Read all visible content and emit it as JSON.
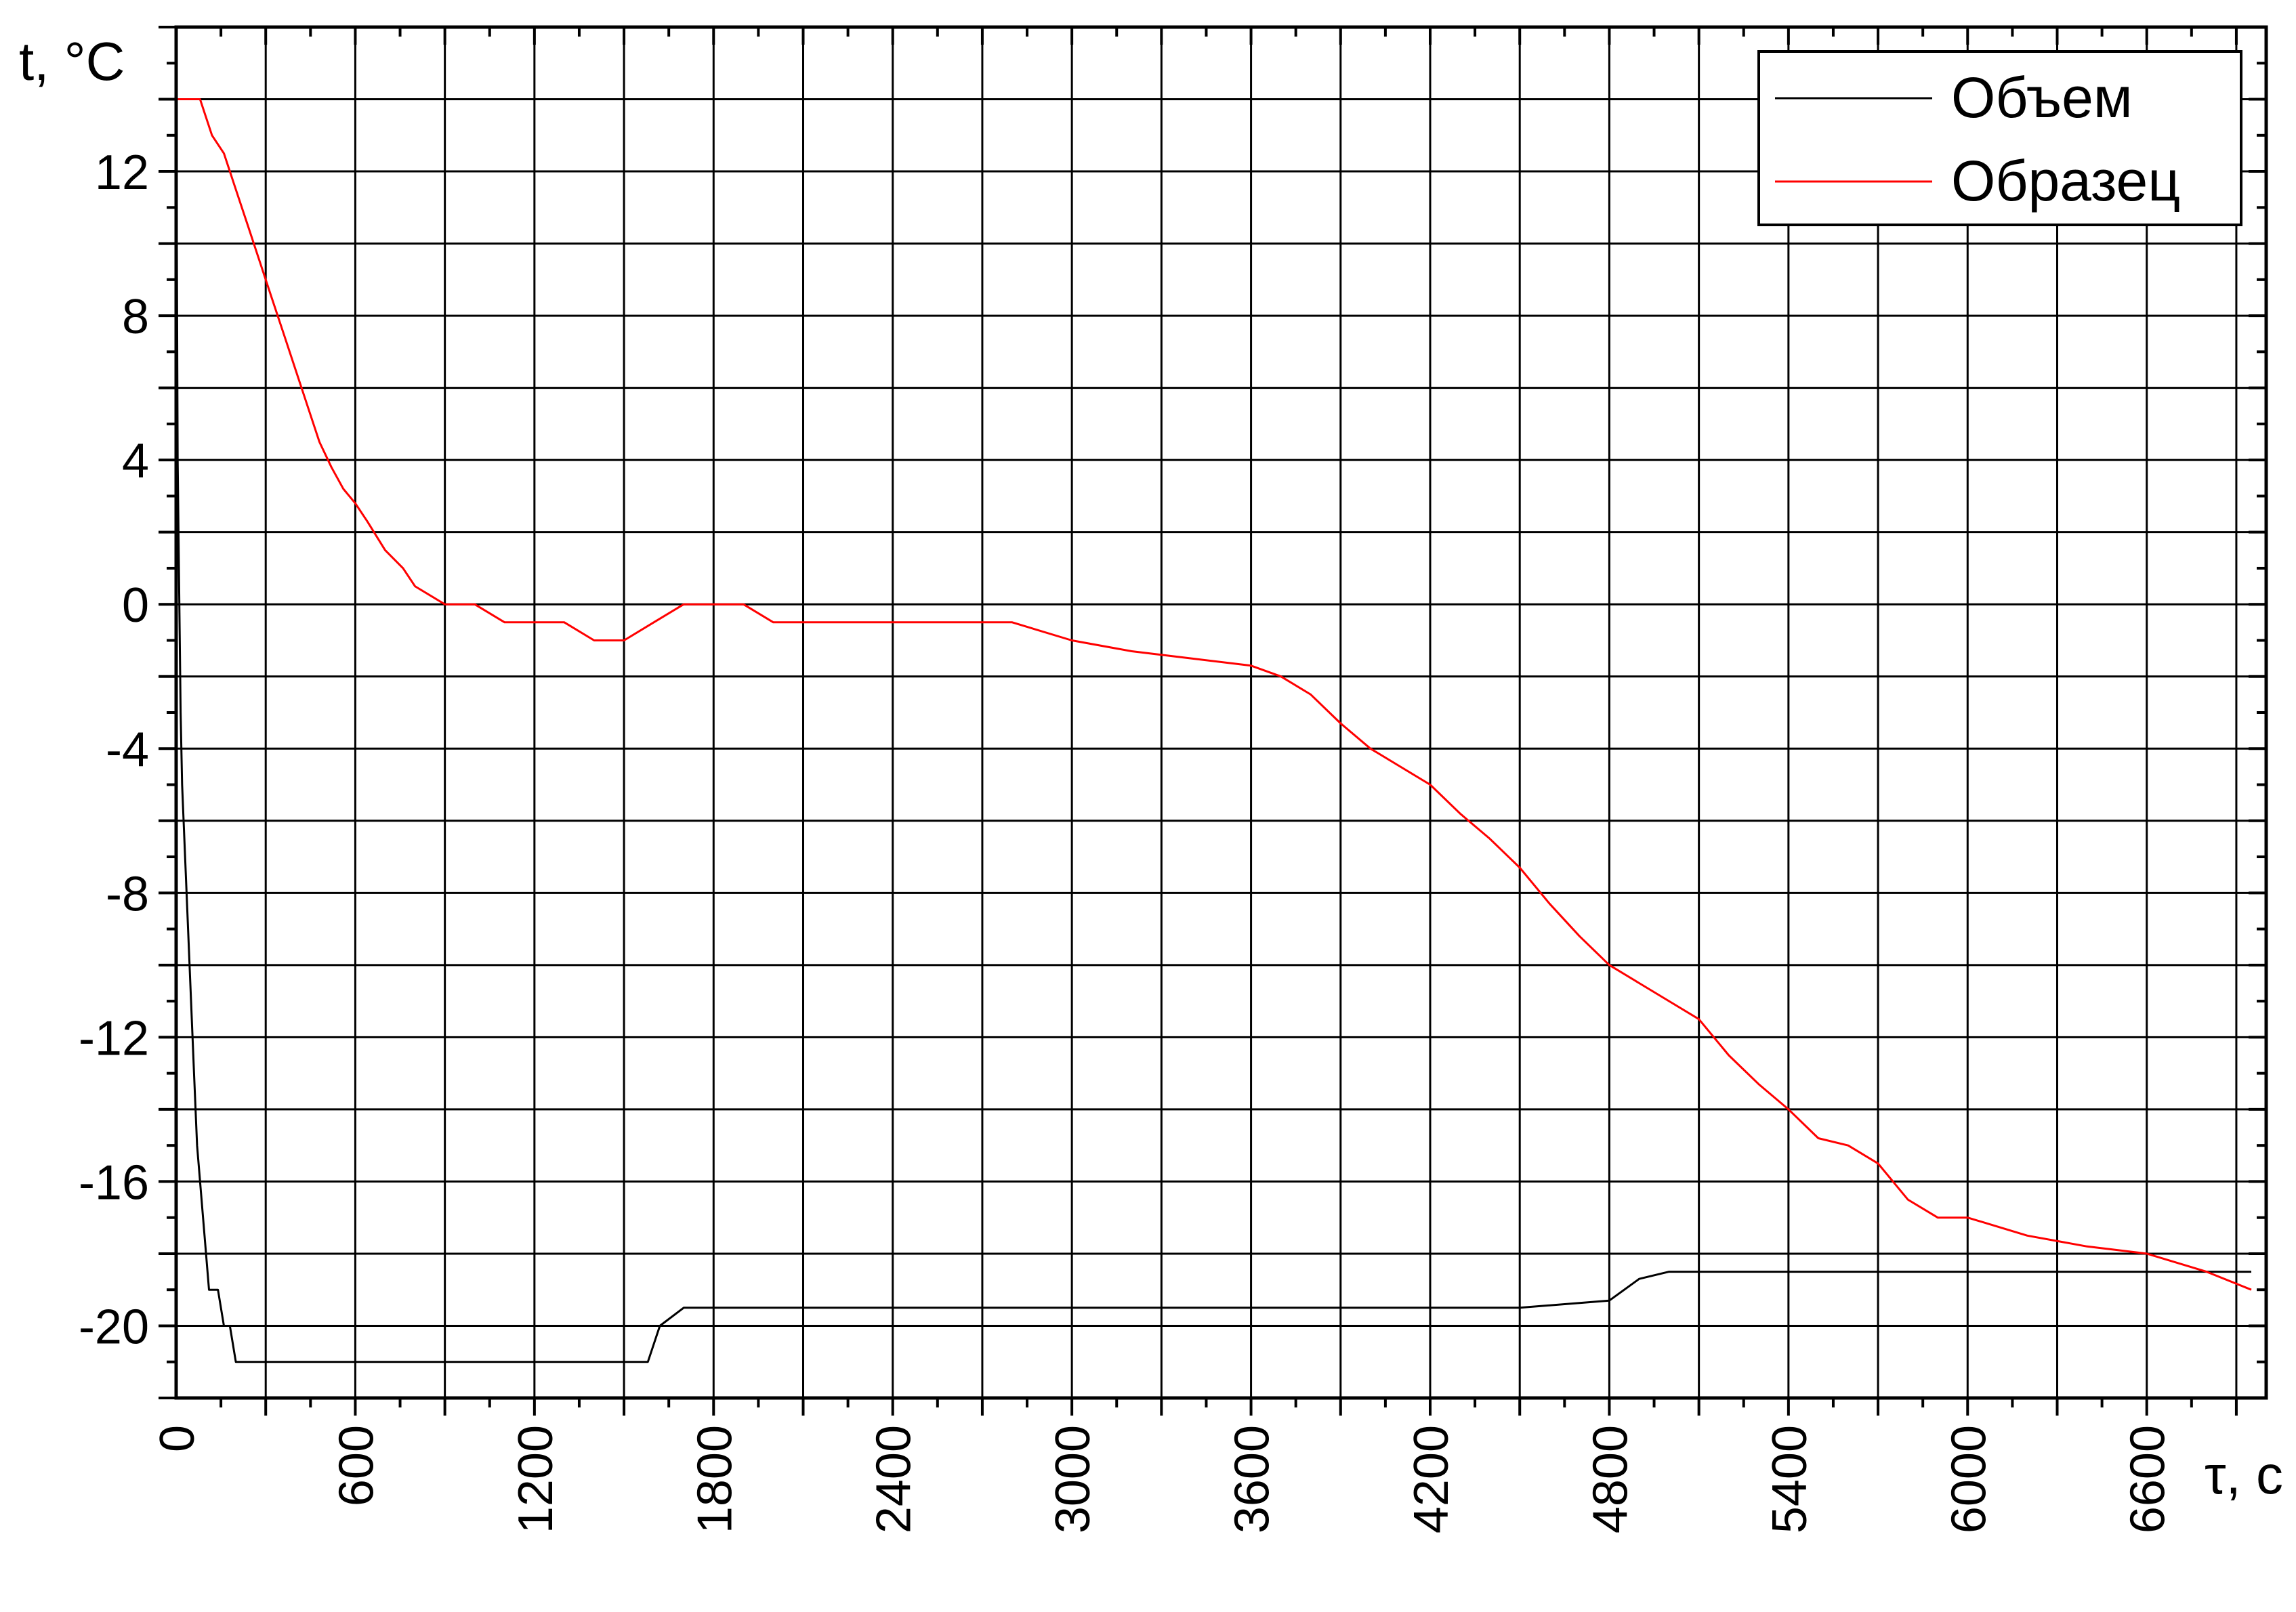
{
  "chart_data": {
    "type": "line",
    "xlabel": "τ, с",
    "ylabel": "t, °C",
    "xlim": [
      0,
      7000
    ],
    "ylim": [
      -22,
      16
    ],
    "x_ticks": [
      "0",
      "600",
      "1200",
      "1800",
      "2400",
      "3000",
      "3600",
      "4200",
      "4800",
      "5400",
      "6000",
      "6600"
    ],
    "y_ticks": [
      "12",
      "8",
      "4",
      "0",
      "-4",
      "-8",
      "-12",
      "-16",
      "-20"
    ],
    "grid": true,
    "legend_position": "top-right",
    "series": [
      {
        "name": "Объем",
        "color": "#000000",
        "x": [
          0,
          5,
          10,
          15,
          20,
          30,
          40,
          50,
          60,
          70,
          80,
          90,
          100,
          110,
          120,
          140,
          160,
          180,
          200,
          220,
          240,
          270,
          300,
          350,
          400,
          500,
          600,
          950,
          1100,
          1300,
          1500,
          1580,
          1620,
          1700,
          1900,
          2200,
          2600,
          3000,
          3300,
          3600,
          3900,
          4200,
          4500,
          4800,
          4900,
          5000,
          5400,
          5800,
          6200,
          6600,
          6950
        ],
        "y": [
          15,
          4,
          0.5,
          -3,
          -5,
          -7,
          -9,
          -11,
          -13,
          -15,
          -16,
          -17,
          -18,
          -19,
          -19,
          -19,
          -20,
          -20,
          -21,
          -21,
          -21,
          -21,
          -21,
          -21,
          -21,
          -21,
          -21,
          -21,
          -21,
          -21,
          -21,
          -21,
          -20,
          -19.5,
          -19.5,
          -19.5,
          -19.5,
          -19.5,
          -19.5,
          -19.5,
          -19.5,
          -19.5,
          -19.5,
          -19.3,
          -18.7,
          -18.5,
          -18.5,
          -18.5,
          -18.5,
          -18.5,
          -18.5
        ]
      },
      {
        "name": "Образец",
        "color": "#ff0000",
        "x": [
          0,
          40,
          80,
          120,
          160,
          200,
          240,
          280,
          320,
          360,
          400,
          440,
          480,
          520,
          560,
          600,
          640,
          700,
          760,
          800,
          900,
          1000,
          1100,
          1200,
          1300,
          1400,
          1500,
          1600,
          1700,
          1800,
          1900,
          2000,
          2200,
          2400,
          2600,
          2800,
          3000,
          3200,
          3400,
          3600,
          3700,
          3800,
          3900,
          4000,
          4100,
          4200,
          4300,
          4400,
          4500,
          4600,
          4700,
          4800,
          4900,
          5000,
          5100,
          5200,
          5300,
          5400,
          5500,
          5600,
          5700,
          5800,
          5900,
          6000,
          6200,
          6400,
          6600,
          6800,
          6950
        ],
        "y": [
          14,
          14,
          14,
          13,
          12.5,
          11.5,
          10.5,
          9.5,
          8.5,
          7.5,
          6.5,
          5.5,
          4.5,
          3.8,
          3.2,
          2.8,
          2.3,
          1.5,
          1,
          0.5,
          0,
          0,
          -0.5,
          -0.5,
          -0.5,
          -1,
          -1,
          -0.5,
          0,
          0,
          0,
          -0.5,
          -0.5,
          -0.5,
          -0.5,
          -0.5,
          -1,
          -1.3,
          -1.5,
          -1.7,
          -2,
          -2.5,
          -3.3,
          -4,
          -4.5,
          -5,
          -5.8,
          -6.5,
          -7.3,
          -8.3,
          -9.2,
          -10,
          -10.5,
          -11,
          -11.5,
          -12.5,
          -13.3,
          -14,
          -14.8,
          -15,
          -15.5,
          -16.5,
          -17,
          -17,
          -17.5,
          -17.8,
          -18,
          -18.5,
          -19
        ]
      }
    ]
  }
}
